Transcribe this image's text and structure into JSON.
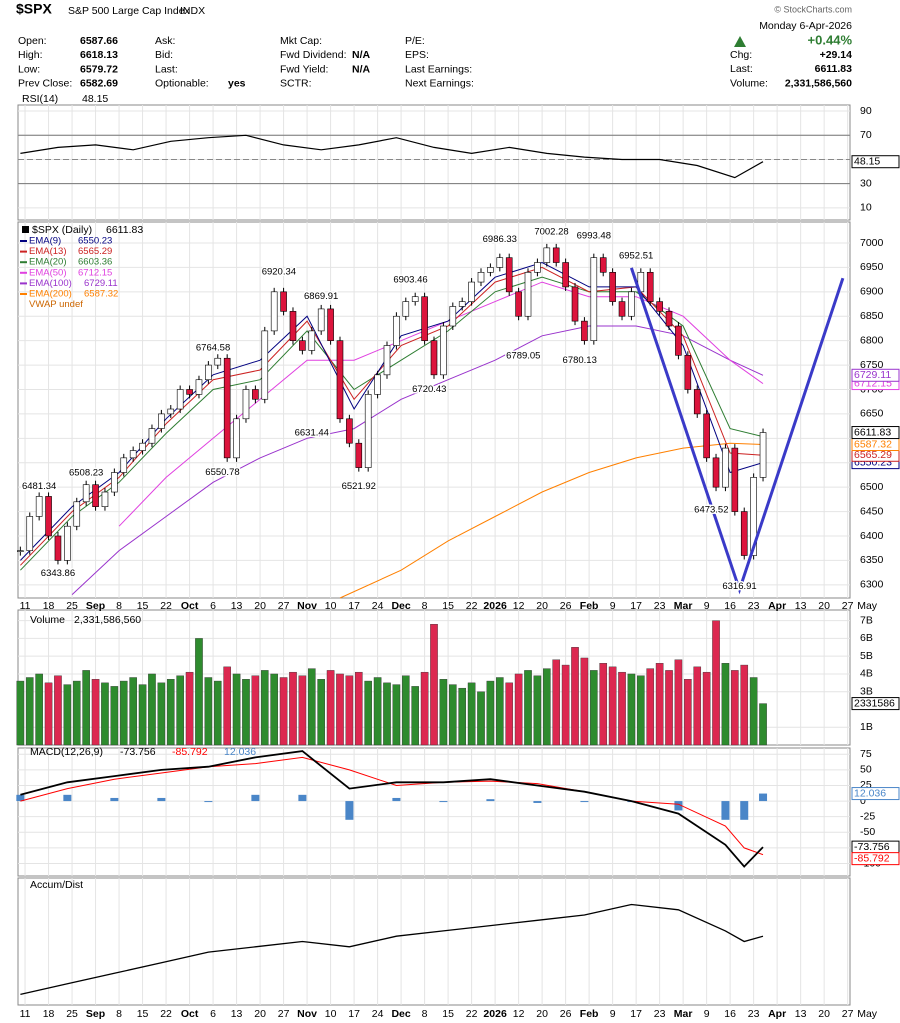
{
  "header": {
    "symbol": "$SPX",
    "name": "S&P 500 Large Cap Index",
    "exchange": "INDX",
    "watermark": "© StockCharts.com",
    "date": "Monday  6-Apr-2026",
    "change_pct": "+0.44%",
    "fields": [
      {
        "label": "Open:",
        "value": 6587.66
      },
      {
        "label": "High:",
        "value": 6618.13
      },
      {
        "label": "Low:",
        "value": 6579.72
      },
      {
        "label": "Prev Close:",
        "value": 6582.69
      },
      {
        "label": "Ask:"
      },
      {
        "label": "Bid:"
      },
      {
        "label": "Last:"
      },
      {
        "label": "Optionable:",
        "value": "yes"
      },
      {
        "label": "Mkt Cap:"
      },
      {
        "label": "Fwd Dividend:",
        "value": "N/A"
      },
      {
        "label": "Fwd Yield:",
        "value": "N/A"
      },
      {
        "label": "SCTR:"
      },
      {
        "label": "P/E:"
      },
      {
        "label": "EPS:"
      },
      {
        "label": "Last Earnings:"
      },
      {
        "label": "Next Earnings:"
      }
    ],
    "quote": [
      {
        "label": "Chg:",
        "value": "+29.14"
      },
      {
        "label": "Last:",
        "value": 6611.83
      },
      {
        "label": "Volume:",
        "value": "2,331,586,560"
      }
    ]
  },
  "chart_data": [
    {
      "type": "line",
      "title": "RSI(14)",
      "color": "#000000",
      "x": [
        -1,
        7,
        15,
        23,
        31,
        39,
        47,
        55,
        63,
        71,
        79,
        87,
        95,
        103,
        111,
        119,
        127,
        135,
        143,
        151,
        157
      ],
      "values": [
        55,
        60,
        62,
        58,
        65,
        68,
        70,
        62,
        58,
        62,
        68,
        60,
        55,
        60,
        55,
        52,
        50,
        50,
        45,
        35,
        48.15
      ],
      "levels": [
        70,
        30
      ],
      "midline": 50,
      "ylim": [
        0,
        95
      ],
      "yticks": [
        10,
        30,
        50,
        70,
        90
      ]
    },
    {
      "type": "candlestick",
      "title": "$SPX (Daily)",
      "color_up": "#228b22",
      "color_down": "#dc143c",
      "xlim": [
        -1.5,
        175.5
      ],
      "xticks": [
        {
          "value": 0,
          "label": "11"
        },
        {
          "value": 5,
          "label": "18"
        },
        {
          "value": 10,
          "label": "25"
        },
        {
          "value": 15,
          "label": "Sep"
        },
        {
          "value": 20,
          "label": "8"
        },
        {
          "value": 25,
          "label": "15"
        },
        {
          "value": 30,
          "label": "22"
        },
        {
          "value": 35,
          "label": "Oct"
        },
        {
          "value": 40,
          "label": "6"
        },
        {
          "value": 45,
          "label": "13"
        },
        {
          "value": 50,
          "label": "20"
        },
        {
          "value": 55,
          "label": "27"
        },
        {
          "value": 60,
          "label": "Nov"
        },
        {
          "value": 65,
          "label": "10"
        },
        {
          "value": 70,
          "label": "17"
        },
        {
          "value": 75,
          "label": "24"
        },
        {
          "value": 80,
          "label": "Dec"
        },
        {
          "value": 85,
          "label": "8"
        },
        {
          "value": 90,
          "label": "15"
        },
        {
          "value": 95,
          "label": "22"
        },
        {
          "value": 100,
          "label": "2026"
        },
        {
          "value": 105,
          "label": "12"
        },
        {
          "value": 110,
          "label": "20"
        },
        {
          "value": 115,
          "label": "26"
        },
        {
          "value": 120,
          "label": "Feb"
        },
        {
          "value": 125,
          "label": "9"
        },
        {
          "value": 130,
          "label": "17"
        },
        {
          "value": 135,
          "label": "23"
        },
        {
          "value": 140,
          "label": "Mar"
        },
        {
          "value": 145,
          "label": "9"
        },
        {
          "value": 150,
          "label": "16"
        },
        {
          "value": 155,
          "label": "23"
        },
        {
          "value": 160,
          "label": "Apr"
        },
        {
          "value": 165,
          "label": "13"
        },
        {
          "value": 170,
          "label": "20"
        },
        {
          "value": 175,
          "label": "27"
        },
        {
          "value": 180,
          "label": "May"
        }
      ],
      "x": [
        -1,
        1,
        3,
        5,
        7,
        9,
        11,
        13,
        15,
        17,
        19,
        21,
        23,
        25,
        27,
        29,
        31,
        33,
        35,
        37,
        39,
        41,
        43,
        45,
        47,
        49,
        51,
        53,
        55,
        57,
        59,
        61,
        63,
        65,
        67,
        69,
        71,
        73,
        75,
        77,
        79,
        81,
        83,
        85,
        87,
        89,
        91,
        93,
        95,
        97,
        99,
        101,
        103,
        105,
        107,
        109,
        111,
        113,
        115,
        117,
        119,
        121,
        123,
        125,
        127,
        129,
        131,
        133,
        135,
        137,
        139,
        141,
        143,
        145,
        147,
        149,
        151,
        153,
        155,
        157
      ],
      "values": [
        6370,
        6440,
        6481,
        6400,
        6350,
        6420,
        6470,
        6505,
        6460,
        6490,
        6530,
        6560,
        6575,
        6590,
        6620,
        6650,
        6660,
        6700,
        6690,
        6720,
        6750,
        6764,
        6560,
        6640,
        6700,
        6680,
        6820,
        6900,
        6860,
        6800,
        6780,
        6820,
        6865,
        6800,
        6640,
        6590,
        6540,
        6690,
        6730,
        6790,
        6850,
        6880,
        6890,
        6800,
        6730,
        6830,
        6870,
        6880,
        6920,
        6940,
        6950,
        6970,
        6900,
        6850,
        6940,
        6960,
        6990,
        6960,
        6910,
        6840,
        6800,
        6970,
        6940,
        6880,
        6850,
        6900,
        6940,
        6880,
        6860,
        6830,
        6770,
        6700,
        6650,
        6560,
        6500,
        6580,
        6450,
        6360,
        6520,
        6611.83
      ],
      "series": [
        {
          "name": "EMA(9)",
          "color": "#000080",
          "x": [
            -1,
            10,
            20,
            30,
            40,
            50,
            60,
            70,
            80,
            90,
            100,
            110,
            120,
            130,
            140,
            150,
            157
          ],
          "values": [
            6350,
            6460,
            6530,
            6640,
            6730,
            6760,
            6850,
            6660,
            6810,
            6840,
            6930,
            6960,
            6910,
            6910,
            6790,
            6530,
            6550.23
          ]
        },
        {
          "name": "EMA(13)",
          "color": "#cc2222",
          "x": [
            -1,
            10,
            20,
            30,
            40,
            50,
            60,
            70,
            80,
            90,
            100,
            110,
            120,
            130,
            140,
            150,
            157
          ],
          "values": [
            6340,
            6450,
            6520,
            6630,
            6720,
            6740,
            6840,
            6680,
            6790,
            6830,
            6920,
            6950,
            6900,
            6910,
            6810,
            6570,
            6565.29
          ]
        },
        {
          "name": "EMA(20)",
          "color": "#2e7d32",
          "x": [
            -1,
            10,
            20,
            30,
            40,
            50,
            60,
            70,
            80,
            90,
            100,
            110,
            120,
            130,
            140,
            150,
            157
          ],
          "values": [
            6330,
            6440,
            6510,
            6610,
            6700,
            6720,
            6820,
            6700,
            6760,
            6820,
            6900,
            6930,
            6900,
            6900,
            6830,
            6620,
            6603.36
          ]
        },
        {
          "name": "EMA(50)",
          "color": "#e040e0",
          "x": [
            20,
            30,
            40,
            50,
            60,
            70,
            80,
            90,
            100,
            110,
            120,
            130,
            140,
            150,
            157
          ],
          "values": [
            6420,
            6520,
            6600,
            6680,
            6760,
            6760,
            6800,
            6840,
            6880,
            6920,
            6890,
            6890,
            6850,
            6760,
            6712.15
          ]
        },
        {
          "name": "EMA(100)",
          "color": "#9933cc",
          "x": [
            10,
            20,
            30,
            40,
            50,
            60,
            70,
            80,
            90,
            100,
            110,
            120,
            130,
            140,
            150,
            157
          ],
          "values": [
            6280,
            6370,
            6440,
            6510,
            6560,
            6600,
            6620,
            6680,
            6720,
            6760,
            6810,
            6830,
            6830,
            6810,
            6760,
            6729.11
          ]
        },
        {
          "name": "EMA(200)",
          "color": "#ff8000",
          "x": [
            67,
            80,
            90,
            100,
            110,
            120,
            130,
            140,
            150,
            157
          ],
          "values": [
            6273,
            6330,
            6390,
            6440,
            6490,
            6530,
            6560,
            6580,
            6590,
            6587.32
          ]
        }
      ],
      "extra_legend": {
        "text": "VWAP undef",
        "color": "#cc6600"
      },
      "annotations": [
        {
          "x": 3,
          "value": 6481.34,
          "position": "above"
        },
        {
          "x": 7,
          "value": 6343.86,
          "position": "below"
        },
        {
          "x": 13,
          "value": 6508.23,
          "position": "above"
        },
        {
          "x": 40,
          "value": 6764.58,
          "position": "above"
        },
        {
          "x": 42,
          "value": 6550.78,
          "position": "below"
        },
        {
          "x": 54,
          "value": 6920.34,
          "position": "above"
        },
        {
          "x": 63,
          "value": 6869.91,
          "position": "above"
        },
        {
          "x": 61,
          "value": 6631.44,
          "position": "below"
        },
        {
          "x": 71,
          "value": 6521.92,
          "position": "below"
        },
        {
          "x": 82,
          "value": 6903.46,
          "position": "above"
        },
        {
          "x": 86,
          "value": 6720.43,
          "position": "below"
        },
        {
          "x": 101,
          "value": 6986.33,
          "position": "above"
        },
        {
          "x": 106,
          "value": 6789.05,
          "position": "below"
        },
        {
          "x": 112,
          "value": 7002.28,
          "position": "above"
        },
        {
          "x": 118,
          "value": 6780.13,
          "position": "below"
        },
        {
          "x": 121,
          "value": 6993.48,
          "position": "above"
        },
        {
          "x": 130,
          "value": 6952.51,
          "position": "above"
        },
        {
          "x": 146,
          "value": 6473.52,
          "position": "below"
        },
        {
          "x": 152,
          "value": 6316.91,
          "position": "below"
        }
      ],
      "trendline": {
        "color": "#3a3ac8",
        "x": [
          129,
          152,
          174
        ],
        "values": [
          6949,
          6290,
          6928
        ]
      },
      "ylim": [
        6273,
        7043
      ],
      "yticks": [
        6300,
        6350,
        6400,
        6450,
        6500,
        6550,
        6600,
        6650,
        6700,
        6750,
        6800,
        6850,
        6900,
        6950,
        7000
      ]
    },
    {
      "type": "bar",
      "title": "Volume",
      "title_value": "2,331,586,560",
      "last_tag": "2331586",
      "values": [
        3.6,
        3.8,
        4.0,
        3.5,
        3.9,
        3.4,
        3.6,
        4.2,
        3.7,
        3.5,
        3.3,
        3.6,
        3.8,
        3.4,
        4.0,
        3.5,
        3.7,
        3.9,
        4.1,
        6.0,
        3.8,
        3.6,
        4.4,
        4.0,
        3.7,
        3.9,
        4.2,
        4.0,
        3.8,
        4.1,
        3.9,
        4.3,
        3.7,
        4.2,
        4.0,
        3.9,
        4.1,
        3.6,
        3.8,
        3.5,
        3.4,
        3.9,
        3.3,
        4.1,
        6.8,
        3.7,
        3.4,
        3.2,
        3.5,
        3.0,
        3.6,
        3.8,
        3.5,
        4.0,
        4.2,
        3.9,
        4.3,
        4.8,
        4.5,
        5.5,
        4.9,
        4.2,
        4.6,
        4.4,
        4.1,
        4.0,
        3.9,
        4.3,
        4.6,
        4.2,
        4.8,
        3.7,
        4.4,
        4.1,
        7.0,
        4.6,
        4.2,
        4.5,
        3.8,
        2.33158656
      ],
      "ylim": [
        0,
        7.6
      ],
      "yticks": [
        {
          "value": 1,
          "label": "1B"
        },
        {
          "value": 3,
          "label": "3B"
        },
        {
          "value": 4,
          "label": "4B"
        },
        {
          "value": 5,
          "label": "5B"
        },
        {
          "value": 6,
          "label": "6B"
        },
        {
          "value": 7,
          "label": "7B"
        }
      ]
    },
    {
      "type": "macd",
      "title": "MACD(12,26,9)",
      "x": [
        -1,
        9,
        19,
        29,
        39,
        49,
        59,
        69,
        79,
        89,
        99,
        109,
        119,
        129,
        139,
        149,
        153,
        157
      ],
      "series": [
        {
          "name": "MACD",
          "color": "#000000",
          "values": [
            10,
            30,
            40,
            50,
            55,
            70,
            80,
            20,
            30,
            30,
            35,
            25,
            15,
            0,
            -20,
            -70,
            -105,
            -73.756
          ]
        },
        {
          "name": "Signal",
          "color": "#ff0000",
          "values": [
            0,
            20,
            35,
            45,
            55,
            60,
            70,
            50,
            25,
            30,
            32,
            28,
            15,
            0,
            -5,
            -40,
            -75,
            -85.792
          ]
        },
        {
          "name": "Histogram",
          "color": "#4a86c8",
          "values": [
            10,
            10,
            5,
            5,
            0,
            10,
            10,
            -30,
            5,
            0,
            3,
            -3,
            0,
            0,
            -15,
            -30,
            -30,
            12.036
          ]
        }
      ],
      "ylim": [
        -120,
        85
      ],
      "yticks": [
        75,
        50,
        25,
        0,
        -25,
        -50,
        -75,
        -100
      ]
    },
    {
      "type": "line",
      "title": "Accum/Dist",
      "color": "#000000",
      "x": [
        -1,
        9,
        19,
        29,
        39,
        49,
        59,
        69,
        79,
        89,
        99,
        109,
        119,
        129,
        139,
        149,
        153,
        157
      ],
      "values": [
        0,
        10,
        20,
        30,
        40,
        45,
        50,
        45,
        55,
        60,
        65,
        70,
        75,
        85,
        80,
        60,
        50,
        55
      ],
      "ylim": [
        -10,
        110
      ]
    }
  ]
}
